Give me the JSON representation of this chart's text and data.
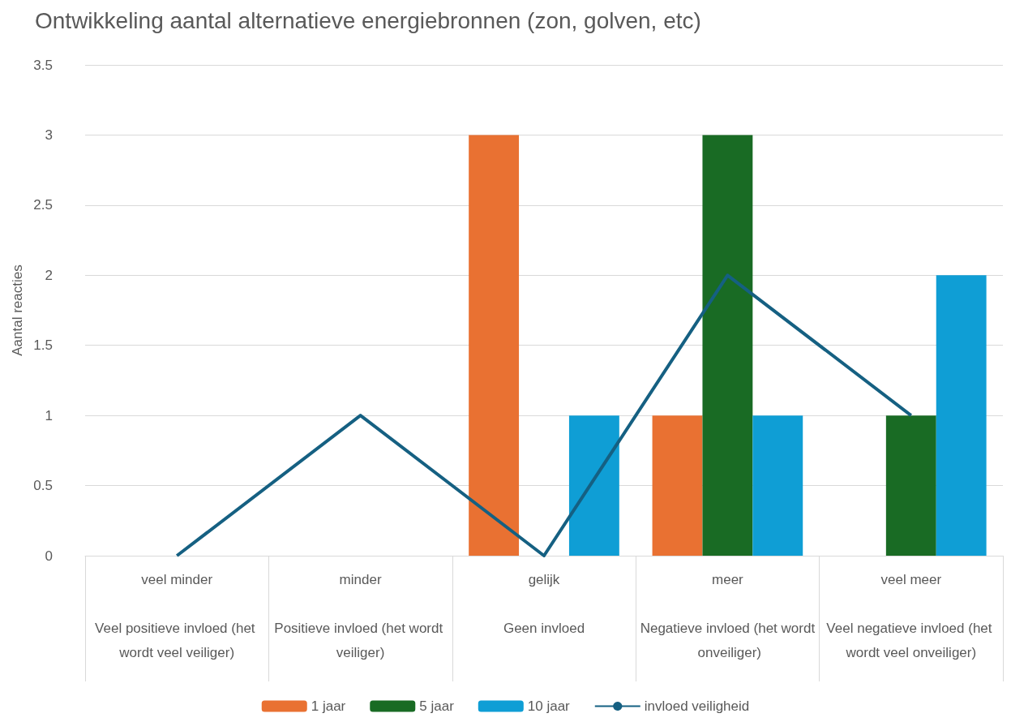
{
  "chart_data": {
    "type": "bar",
    "title": "Ontwikkeling aantal alternatieve energiebronnen (zon, golven, etc)",
    "ylabel": "Aantal reacties",
    "categories": [
      "veel minder\nVeel positieve invloed (het wordt veel veiliger)",
      "minder\nPositieve invloed (het wordt veiliger)",
      "gelijk\nGeen invloed",
      "meer\nNegatieve invloed (het wordt onveiliger)",
      "veel meer\nVeel negatieve invloed (het wordt veel onveiliger)"
    ],
    "series": [
      {
        "name": "1 jaar",
        "color": "#e97132",
        "values": [
          null,
          null,
          3,
          1,
          null
        ]
      },
      {
        "name": "5 jaar",
        "color": "#196b24",
        "values": [
          null,
          null,
          null,
          3,
          1
        ]
      },
      {
        "name": "10 jaar",
        "color": "#0f9ed5",
        "values": [
          null,
          null,
          1,
          1,
          2
        ]
      },
      {
        "name": "invloed veiligheid",
        "type": "line",
        "color": "#156082",
        "values": [
          0,
          1,
          0,
          2,
          1
        ],
        "marker": "none",
        "line_style": "solid"
      }
    ],
    "ylim": [
      0,
      3.5
    ],
    "yticks": [
      0,
      0.5,
      1,
      1.5,
      2,
      2.5,
      3,
      3.5
    ],
    "grid": "y",
    "legend": "bottom"
  }
}
